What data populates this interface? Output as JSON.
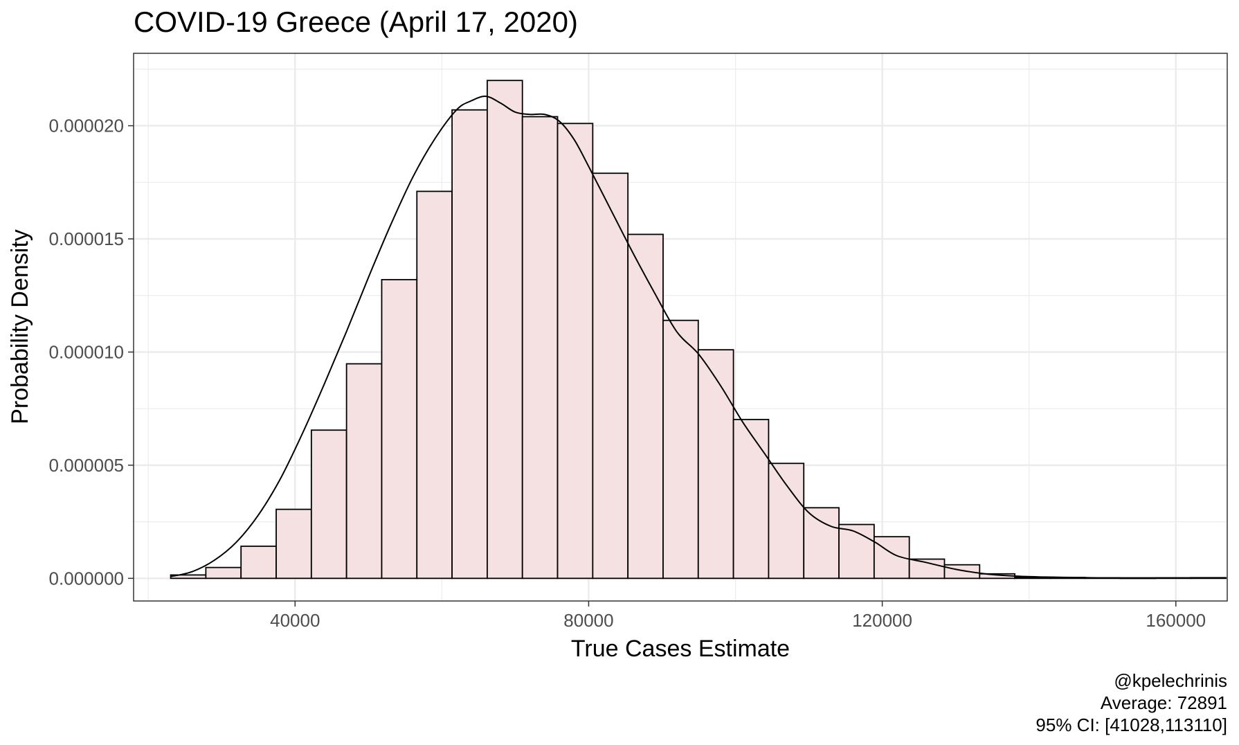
{
  "chart_data": {
    "type": "bar",
    "title": "COVID-19 Greece (April 17, 2020)",
    "xlabel": "True Cases Estimate",
    "ylabel": "Probability Density",
    "xlim": [
      18000,
      167000
    ],
    "ylim": [
      -1e-06,
      2.32e-05
    ],
    "x_ticks": [
      40000,
      80000,
      120000,
      160000
    ],
    "x_tick_labels": [
      "40000",
      "80000",
      "120000",
      "160000"
    ],
    "y_ticks": [
      0,
      5e-06,
      1e-05,
      1.5e-05,
      2e-05
    ],
    "y_tick_labels": [
      "0.000000",
      "0.000005",
      "0.000010",
      "0.000015",
      "0.000020"
    ],
    "grid": true,
    "bin_width": 4792,
    "bin_starts": [
      23052,
      27844,
      32636,
      37428,
      42220,
      47012,
      51804,
      56596,
      61388,
      66180,
      70972,
      75764,
      80556,
      85348,
      90140,
      94932,
      99724,
      104516,
      109308,
      114100,
      118892,
      123684,
      128476,
      133268,
      138060,
      142852,
      147644,
      152436,
      157228,
      162020
    ],
    "densities": [
      1.5e-07,
      4.8e-07,
      1.42e-06,
      3.05e-06,
      6.55e-06,
      9.48e-06,
      1.32e-05,
      1.71e-05,
      2.07e-05,
      2.2e-05,
      2.04e-05,
      2.01e-05,
      1.79e-05,
      1.52e-05,
      1.14e-05,
      1.01e-05,
      7.02e-06,
      5.08e-06,
      3.12e-06,
      2.38e-06,
      1.84e-06,
      8.5e-07,
      6e-07,
      2e-07,
      5e-08,
      4e-08,
      2e-08,
      1e-08,
      2e-08,
      3e-08
    ],
    "fill_color": "#f5e1e1",
    "outline_color": "#000000",
    "density_curve": {
      "x": [
        23052,
        26000,
        29000,
        32000,
        35000,
        38000,
        41000,
        44000,
        47000,
        50000,
        53000,
        56000,
        59000,
        62000,
        64000,
        66000,
        68000,
        70000,
        72000,
        74000,
        76000,
        78000,
        80000,
        83000,
        86000,
        89000,
        92000,
        95000,
        98000,
        101000,
        104000,
        107000,
        110000,
        113000,
        116000,
        119000,
        122000,
        126000,
        130000,
        134000,
        138000,
        142000,
        146000,
        150000,
        155000,
        160000,
        164000
      ],
      "y": [
        8e-08,
        3e-07,
        8e-07,
        1.6e-06,
        2.8e-06,
        4.4e-06,
        6.4e-06,
        8.6e-06,
        1.09e-05,
        1.33e-05,
        1.56e-05,
        1.77e-05,
        1.94e-05,
        2.07e-05,
        2.11e-05,
        2.13e-05,
        2.1e-05,
        2.06e-05,
        2.05e-05,
        2.05e-05,
        2.02e-05,
        1.94e-05,
        1.82e-05,
        1.63e-05,
        1.44e-05,
        1.26e-05,
        1.09e-05,
        9.9e-06,
        8.5e-06,
        6.9e-06,
        5.5e-06,
        4.1e-06,
        2.9e-06,
        2.3e-06,
        2.1e-06,
        1.6e-06,
        1e-06,
        7e-07,
        4e-07,
        2e-07,
        1e-07,
        6e-08,
        4e-08,
        2e-08,
        2e-08,
        2e-08,
        2e-08
      ]
    },
    "captions": [
      "@kpelechrinis",
      "Average: 72891",
      "95% CI: [41028,113110]"
    ]
  }
}
